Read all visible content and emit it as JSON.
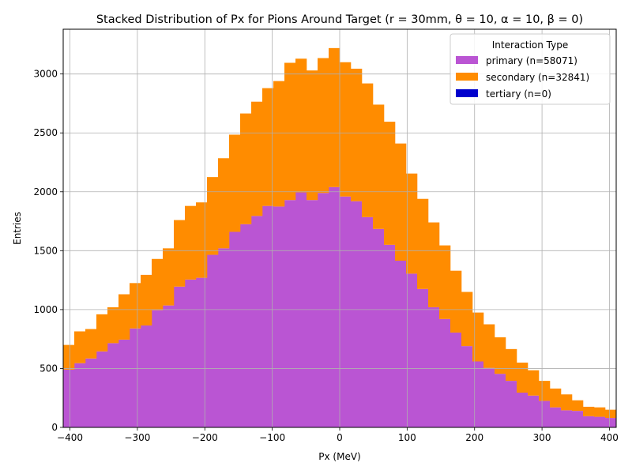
{
  "chart_data": {
    "type": "bar",
    "stacked": true,
    "title": "Stacked Distribution of Px for Pions Around Target (r = 30mm, θ = 10, α = 10, β = 0)",
    "xlabel": "Px (MeV)",
    "ylabel": "Entries",
    "xlim": [
      -410,
      410
    ],
    "ylim": [
      0,
      3380
    ],
    "x_ticks": [
      -400,
      -300,
      -200,
      -100,
      0,
      100,
      200,
      300,
      400
    ],
    "y_ticks": [
      0,
      500,
      1000,
      1500,
      2000,
      2500,
      3000
    ],
    "grid": true,
    "legend": {
      "title": "Interaction Type",
      "position": "top-right"
    },
    "bin_width": 16.4,
    "bin_start": -410,
    "series": [
      {
        "name": "primary (n=58071)",
        "color": "#ba55d3",
        "values": [
          490,
          545,
          585,
          645,
          715,
          745,
          840,
          865,
          995,
          1035,
          1195,
          1255,
          1270,
          1465,
          1520,
          1660,
          1725,
          1795,
          1880,
          1875,
          1930,
          1995,
          1930,
          1990,
          2040,
          1960,
          1920,
          1785,
          1685,
          1550,
          1415,
          1305,
          1175,
          1020,
          920,
          805,
          690,
          560,
          505,
          455,
          395,
          295,
          270,
          225,
          170,
          145,
          140,
          95,
          90,
          80
        ]
      },
      {
        "name": "secondary (n=32841)",
        "color": "#ff8c00",
        "values": [
          210,
          270,
          250,
          315,
          305,
          385,
          385,
          430,
          435,
          485,
          565,
          625,
          640,
          660,
          765,
          825,
          940,
          970,
          1000,
          1065,
          1165,
          1135,
          1100,
          1145,
          1180,
          1140,
          1125,
          1135,
          1055,
          1045,
          995,
          850,
          765,
          720,
          625,
          525,
          460,
          415,
          370,
          310,
          270,
          255,
          215,
          170,
          160,
          135,
          90,
          80,
          80,
          70
        ]
      },
      {
        "name": "tertiary (n=0)",
        "color": "#0000cd",
        "values": [
          0,
          0,
          0,
          0,
          0,
          0,
          0,
          0,
          0,
          0,
          0,
          0,
          0,
          0,
          0,
          0,
          0,
          0,
          0,
          0,
          0,
          0,
          0,
          0,
          0,
          0,
          0,
          0,
          0,
          0,
          0,
          0,
          0,
          0,
          0,
          0,
          0,
          0,
          0,
          0,
          0,
          0,
          0,
          0,
          0,
          0,
          0,
          0,
          0,
          0
        ]
      }
    ]
  }
}
